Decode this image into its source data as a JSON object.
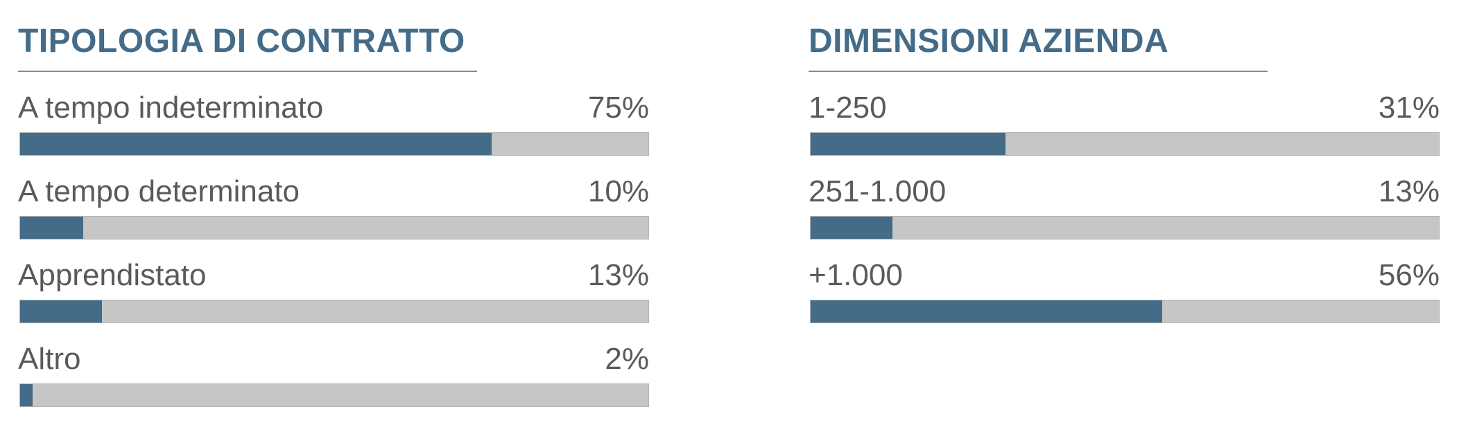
{
  "chart_data": [
    {
      "type": "bar",
      "orientation": "horizontal",
      "title": "TIPOLOGIA DI CONTRATTO",
      "categories": [
        "A tempo indeterminato",
        "A tempo determinato",
        "Apprendistato",
        "Altro"
      ],
      "values": [
        75,
        10,
        13,
        2
      ],
      "value_labels": [
        "75%",
        "10%",
        "13%",
        "2%"
      ],
      "unit": "%",
      "xlim": [
        0,
        100
      ],
      "grid": false,
      "colors": {
        "fill": "#446b88",
        "track": "#c6c6c6"
      }
    },
    {
      "type": "bar",
      "orientation": "horizontal",
      "title": "DIMENSIONI AZIENDA",
      "categories": [
        "1-250",
        "251-1.000",
        "+1.000"
      ],
      "values": [
        31,
        13,
        56
      ],
      "value_labels": [
        "31%",
        "13%",
        "56%"
      ],
      "unit": "%",
      "xlim": [
        0,
        100
      ],
      "grid": false,
      "colors": {
        "fill": "#446b88",
        "track": "#c6c6c6"
      }
    }
  ]
}
